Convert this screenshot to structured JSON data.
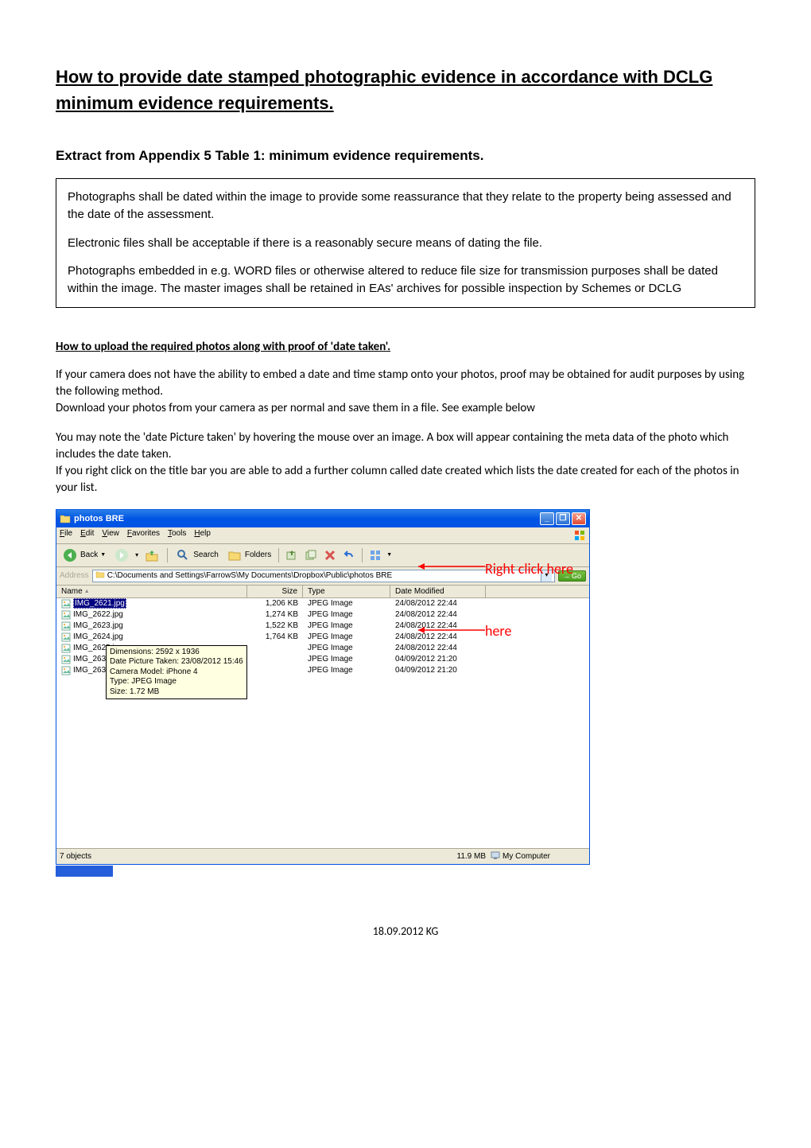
{
  "title": "How to provide date stamped photographic evidence in accordance with DCLG minimum evidence requirements.",
  "subtitle": "Extract from Appendix 5 Table 1: minimum evidence requirements.",
  "box": {
    "p1": "Photographs shall be dated within the image to provide some reassurance that they relate to the property being assessed and the date of the assessment.",
    "p2": "Electronic files shall be acceptable if there is a reasonably secure means of dating the file.",
    "p3": "Photographs embedded in e.g. WORD files or otherwise altered to reduce file size for transmission purposes shall be dated within the image. The master images shall be retained in EAs' archives for possible inspection by Schemes or DCLG"
  },
  "section2_heading": "How to upload the required photos along with proof of 'date taken'.",
  "para1": "If your camera does not have the ability to embed a date and time stamp onto your photos, proof may be obtained for audit purposes by using the following method.",
  "para1b": "Download your photos from your camera as per normal and save them in a file. See example below",
  "para2": "You may note the 'date Picture taken' by hovering the mouse over an image. A box will appear containing the meta data of the photo which includes the date taken.",
  "para3": "If you right click on the title bar you are able to add a further column called date created which lists the date created for each of the photos in your list.",
  "explorer": {
    "title": "photos BRE",
    "menus": [
      "File",
      "Edit",
      "View",
      "Favorites",
      "Tools",
      "Help"
    ],
    "toolbar": {
      "back": "Back",
      "search": "Search",
      "folders": "Folders"
    },
    "address_label": "Address",
    "address_path": "C:\\Documents and Settings\\FarrowS\\My Documents\\Dropbox\\Public\\photos BRE",
    "go_label": "Go",
    "columns": {
      "name": "Name",
      "size": "Size",
      "type": "Type",
      "date": "Date Modified"
    },
    "files": [
      {
        "name": "IMG_2621.jpg",
        "size": "1,206 KB",
        "type": "JPEG Image",
        "date": "24/08/2012 22:44",
        "selected": true
      },
      {
        "name": "IMG_2622.jpg",
        "size": "1,274 KB",
        "type": "JPEG Image",
        "date": "24/08/2012 22:44"
      },
      {
        "name": "IMG_2623.jpg",
        "size": "1,522 KB",
        "type": "JPEG Image",
        "date": "24/08/2012 22:44"
      },
      {
        "name": "IMG_2624.jpg",
        "size": "1,764 KB",
        "type": "JPEG Image",
        "date": "24/08/2012 22:44"
      },
      {
        "name": "IMG_2625.jpg",
        "size": "",
        "type": "JPEG Image",
        "date": "24/08/2012 22:44"
      },
      {
        "name": "IMG_2632.jpg",
        "size": "",
        "type": "JPEG Image",
        "date": "04/09/2012 21:20"
      },
      {
        "name": "IMG_2633.jpg",
        "size": "",
        "type": "JPEG Image",
        "date": "04/09/2012 21:20"
      }
    ],
    "tooltip": {
      "l1": "Dimensions: 2592 x 1936",
      "l2": "Date Picture Taken: 23/08/2012 15:46",
      "l3": "Camera Model: iPhone 4",
      "l4": "Type: JPEG Image",
      "l5": "Size: 1.72 MB"
    },
    "status": {
      "objects": "7 objects",
      "size": "11.9 MB",
      "location": "My Computer"
    }
  },
  "callout_top": "Right click here",
  "callout_mid": "here",
  "footer": "18.09.2012 KG",
  "colors": {
    "titlebar": "#0054e3",
    "callout": "#ff0000",
    "tooltip_bg": "#ffffe1",
    "xp_bg": "#ece9d8"
  }
}
